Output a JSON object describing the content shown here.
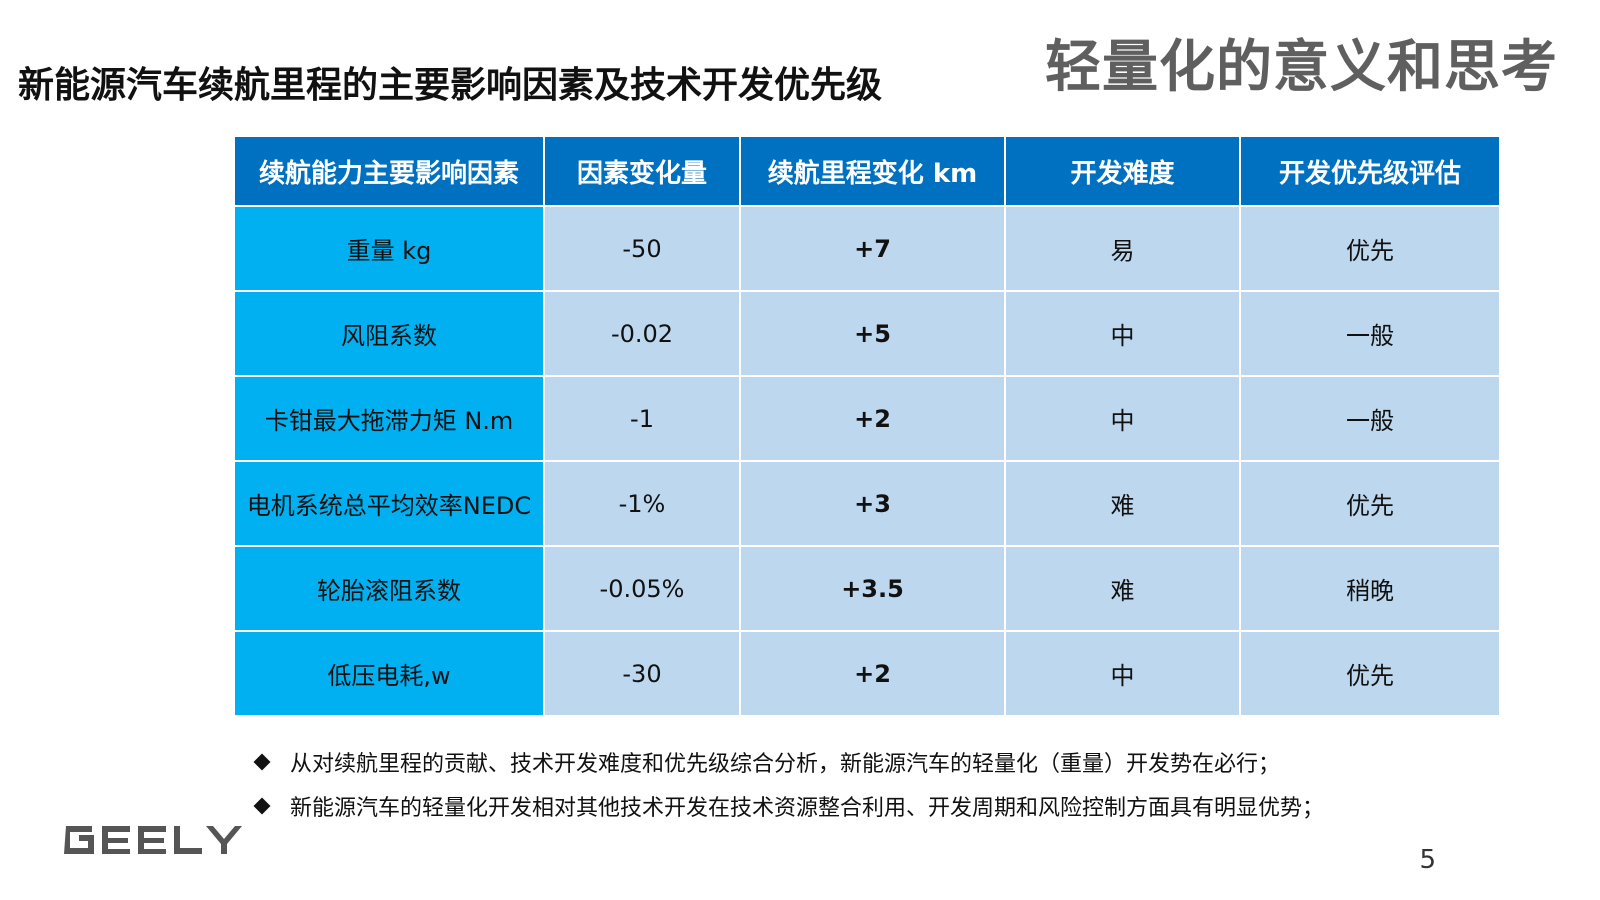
{
  "header": {
    "section_title": "轻量化的意义和思考",
    "main_title": "新能源汽车续航里程的主要影响因素及技术开发优先级"
  },
  "table": {
    "headers": [
      "续航能力主要影响因素",
      "因素变化量",
      "续航里程变化 km",
      "开发难度",
      "开发优先级评估"
    ],
    "rows": [
      [
        "重量 kg",
        "-50",
        "+7",
        "易",
        "优先"
      ],
      [
        "风阻系数",
        "-0.02",
        "+5",
        "中",
        "一般"
      ],
      [
        "卡钳最大拖滞力矩 N.m",
        "-1",
        "+2",
        "中",
        "一般"
      ],
      [
        "电机系统总平均效率NEDC",
        "-1%",
        "+3",
        "难",
        "优先"
      ],
      [
        "轮胎滚阻系数",
        "-0.05%",
        "+3.5",
        "难",
        "稍晚"
      ],
      [
        "低压电耗,w",
        "-30",
        "+2",
        "中",
        "优先"
      ]
    ]
  },
  "bullets": [
    "从对续航里程的贡献、技术开发难度和优先级综合分析，新能源汽车的轻量化（重量）开发势在必行；",
    "新能源汽车的轻量化开发相对其他技术开发在技术资源整合利用、开发周期和风险控制方面具有明显优势；"
  ],
  "footer": {
    "logo_text": "GEELY",
    "page_number": "5"
  },
  "colors": {
    "header_blue": "#0070c0",
    "first_column_blue": "#00b0f0",
    "cell_light_blue": "#bdd7ee",
    "highlight_red": "#ff0000",
    "logo_gray": "#555555"
  }
}
